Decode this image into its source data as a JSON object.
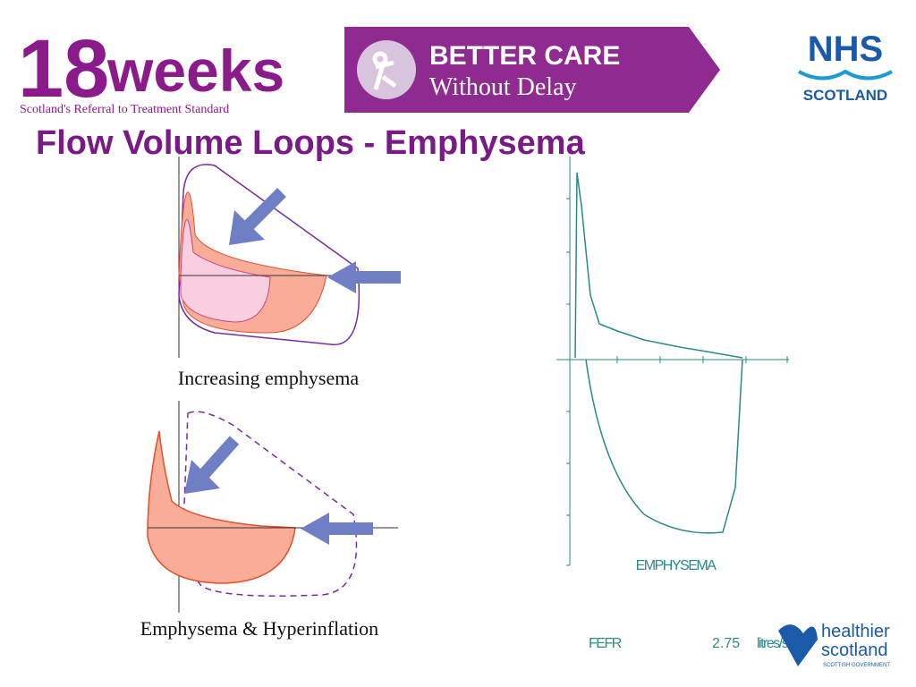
{
  "header": {
    "logo": {
      "number": "18",
      "word": "weeks",
      "tagline": "Scotland's Referral to Treatment Standard"
    },
    "banner": {
      "line1": "BETTER CARE",
      "line2": "Without Delay"
    },
    "nhs": {
      "name": "NHS",
      "region": "SCOTLAND"
    }
  },
  "title": "Flow Volume Loops - Emphysema",
  "diagrams": [
    {
      "caption": "Increasing emphysema"
    },
    {
      "caption": "Emphysema & Hyperinflation"
    }
  ],
  "trace": {
    "label": "EMPHYSEMA",
    "measure": "FEFR",
    "value": 2.75,
    "unit": "litres/sec"
  },
  "footer": {
    "brand": "healthier",
    "brand2": "scotland",
    "sub": "SCOTTISH GOVERNMENT"
  }
}
